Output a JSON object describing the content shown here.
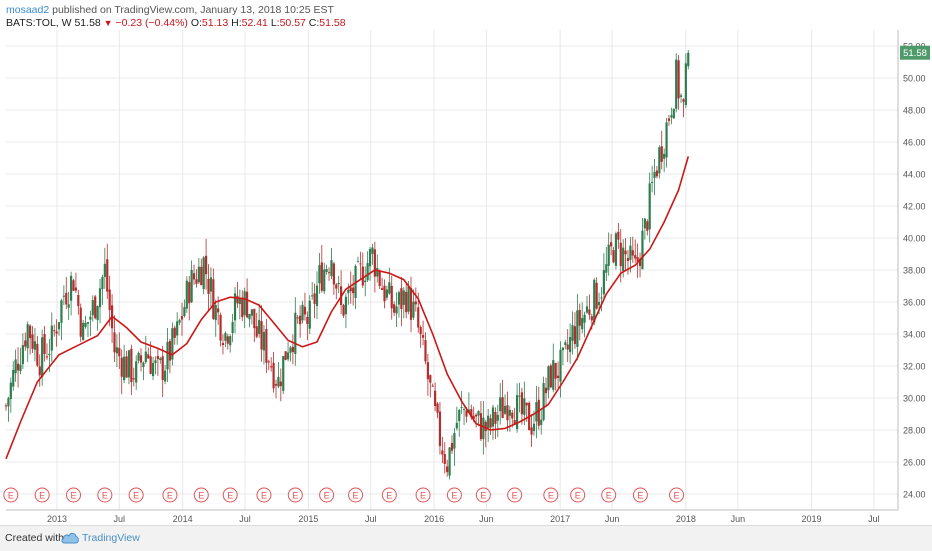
{
  "header": {
    "author": "mosaad2",
    "published_text": "published on TradingView.com, January 13, 2018 10:25 EST"
  },
  "legend": {
    "symbol": "BATS:TOL, W",
    "last": "51.58",
    "change": "−0.23 (−0.44%)",
    "o_label": "O:",
    "o_value": "51.13",
    "h_label": "H:",
    "h_value": "52.41",
    "l_label": "L:",
    "l_value": "50.57",
    "c_label": "C:",
    "c_value": "51.58"
  },
  "colors": {
    "up_candle": "#2e7d4f",
    "down_candle": "#b42d2d",
    "moving_average": "#cc1717",
    "price_tag_bg": "#4f9a6a",
    "earnings_marker": "#e25555",
    "grid": "#e8e8e8"
  },
  "price_tag": "51.58",
  "earnings_marker_label": "E",
  "footer": {
    "created_with": "Created with",
    "brand": "TradingView",
    "brand_icon": "tradingview-cloud-icon"
  },
  "chart_data": {
    "type": "candlestick",
    "interval": "weekly",
    "y_axis_side": "right",
    "ylim": [
      23.0,
      53.0
    ],
    "y_ticks": [
      "24.00",
      "26.00",
      "28.00",
      "30.00",
      "32.00",
      "34.00",
      "36.00",
      "38.00",
      "40.00",
      "42.00",
      "44.00",
      "46.00",
      "48.00",
      "50.00",
      "52.00"
    ],
    "x_range": [
      "2012-08-06",
      "2019-09-09"
    ],
    "x_ticks": [
      {
        "date": "2013-01-01",
        "label": "2013"
      },
      {
        "date": "2013-07-01",
        "label": "Jul"
      },
      {
        "date": "2014-01-01",
        "label": "2014"
      },
      {
        "date": "2014-07-01",
        "label": "Jul"
      },
      {
        "date": "2015-01-01",
        "label": "2015"
      },
      {
        "date": "2015-07-01",
        "label": "Jul"
      },
      {
        "date": "2016-01-01",
        "label": "2016"
      },
      {
        "date": "2016-06-01",
        "label": "Jun"
      },
      {
        "date": "2017-01-01",
        "label": "2017"
      },
      {
        "date": "2017-06-01",
        "label": "Jun"
      },
      {
        "date": "2018-01-01",
        "label": "2018"
      },
      {
        "date": "2018-06-01",
        "label": "Jun"
      },
      {
        "date": "2019-01-01",
        "label": "2019"
      },
      {
        "date": "2019-07-01",
        "label": "Jul"
      }
    ],
    "close_path": [
      [
        "2012-08-06",
        29.5
      ],
      [
        "2012-09-03",
        32.0
      ],
      [
        "2012-10-08",
        34.5
      ],
      [
        "2012-11-12",
        32.5
      ],
      [
        "2012-12-17",
        33.5
      ],
      [
        "2013-01-21",
        36.5
      ],
      [
        "2013-02-18",
        37.5
      ],
      [
        "2013-03-18",
        34.0
      ],
      [
        "2013-04-22",
        36.0
      ],
      [
        "2013-05-20",
        38.0
      ],
      [
        "2013-06-17",
        33.0
      ],
      [
        "2013-07-22",
        32.0
      ],
      [
        "2013-08-19",
        31.5
      ],
      [
        "2013-09-16",
        33.0
      ],
      [
        "2013-10-21",
        31.5
      ],
      [
        "2013-11-18",
        32.5
      ],
      [
        "2013-12-16",
        34.0
      ],
      [
        "2014-01-20",
        37.0
      ],
      [
        "2014-03-03",
        38.5
      ],
      [
        "2014-04-07",
        35.5
      ],
      [
        "2014-05-05",
        34.0
      ],
      [
        "2014-06-09",
        36.0
      ],
      [
        "2014-07-07",
        36.0
      ],
      [
        "2014-08-04",
        34.0
      ],
      [
        "2014-09-01",
        33.0
      ],
      [
        "2014-10-06",
        31.0
      ],
      [
        "2014-11-03",
        33.5
      ],
      [
        "2014-12-01",
        34.5
      ],
      [
        "2015-01-05",
        35.0
      ],
      [
        "2015-02-02",
        37.5
      ],
      [
        "2015-03-09",
        39.0
      ],
      [
        "2015-04-06",
        35.5
      ],
      [
        "2015-05-04",
        36.5
      ],
      [
        "2015-06-08",
        38.0
      ],
      [
        "2015-07-06",
        39.0
      ],
      [
        "2015-08-03",
        37.0
      ],
      [
        "2015-09-07",
        35.5
      ],
      [
        "2015-10-12",
        36.5
      ],
      [
        "2015-11-09",
        35.0
      ],
      [
        "2015-12-07",
        32.0
      ],
      [
        "2016-01-11",
        28.0
      ],
      [
        "2016-02-08",
        26.0
      ],
      [
        "2016-03-07",
        28.5
      ],
      [
        "2016-04-04",
        29.5
      ],
      [
        "2016-05-02",
        28.5
      ],
      [
        "2016-06-06",
        28.0
      ],
      [
        "2016-07-04",
        29.0
      ],
      [
        "2016-08-08",
        30.0
      ],
      [
        "2016-09-05",
        29.0
      ],
      [
        "2016-10-10",
        28.5
      ],
      [
        "2016-11-07",
        29.5
      ],
      [
        "2016-12-05",
        31.5
      ],
      [
        "2017-01-09",
        32.0
      ],
      [
        "2017-02-06",
        34.0
      ],
      [
        "2017-03-06",
        35.0
      ],
      [
        "2017-04-03",
        36.0
      ],
      [
        "2017-05-01",
        37.0
      ],
      [
        "2017-06-05",
        39.5
      ],
      [
        "2017-07-03",
        39.0
      ],
      [
        "2017-08-07",
        38.0
      ],
      [
        "2017-09-04",
        40.5
      ],
      [
        "2017-10-02",
        44.0
      ],
      [
        "2017-11-06",
        47.0
      ],
      [
        "2017-12-04",
        50.0
      ],
      [
        "2017-12-25",
        48.0
      ],
      [
        "2018-01-08",
        51.58
      ]
    ],
    "moving_average": [
      [
        "2012-08-06",
        26.2
      ],
      [
        "2012-09-17",
        28.5
      ],
      [
        "2012-11-05",
        31.0
      ],
      [
        "2013-01-07",
        32.7
      ],
      [
        "2013-03-04",
        33.3
      ],
      [
        "2013-04-29",
        33.9
      ],
      [
        "2013-06-10",
        35.1
      ],
      [
        "2013-07-22",
        34.4
      ],
      [
        "2013-09-02",
        33.5
      ],
      [
        "2013-10-21",
        33.1
      ],
      [
        "2013-12-02",
        32.7
      ],
      [
        "2014-01-13",
        33.4
      ],
      [
        "2014-02-24",
        34.9
      ],
      [
        "2014-04-07",
        36.0
      ],
      [
        "2014-05-19",
        36.3
      ],
      [
        "2014-06-30",
        36.2
      ],
      [
        "2014-08-11",
        35.8
      ],
      [
        "2014-09-22",
        34.7
      ],
      [
        "2014-11-03",
        33.6
      ],
      [
        "2014-12-15",
        33.2
      ],
      [
        "2015-01-26",
        33.5
      ],
      [
        "2015-03-09",
        35.4
      ],
      [
        "2015-04-20",
        36.8
      ],
      [
        "2015-06-01",
        37.4
      ],
      [
        "2015-07-13",
        38.0
      ],
      [
        "2015-08-24",
        37.8
      ],
      [
        "2015-10-05",
        37.4
      ],
      [
        "2015-11-16",
        36.2
      ],
      [
        "2015-12-28",
        34.0
      ],
      [
        "2016-02-08",
        31.5
      ],
      [
        "2016-03-21",
        29.8
      ],
      [
        "2016-05-02",
        28.4
      ],
      [
        "2016-06-13",
        28.0
      ],
      [
        "2016-07-25",
        28.1
      ],
      [
        "2016-09-05",
        28.5
      ],
      [
        "2016-10-17",
        29.0
      ],
      [
        "2016-11-28",
        29.6
      ],
      [
        "2017-01-09",
        31.0
      ],
      [
        "2017-02-20",
        32.5
      ],
      [
        "2017-04-03",
        34.5
      ],
      [
        "2017-05-15",
        36.5
      ],
      [
        "2017-06-26",
        37.8
      ],
      [
        "2017-08-07",
        38.3
      ],
      [
        "2017-09-18",
        39.3
      ],
      [
        "2017-10-30",
        41.0
      ],
      [
        "2017-12-11",
        43.0
      ],
      [
        "2018-01-08",
        45.1
      ]
    ],
    "earnings_dates": [
      "2012-08-20",
      "2012-11-19",
      "2013-02-18",
      "2013-05-20",
      "2013-08-19",
      "2013-11-25",
      "2014-02-24",
      "2014-05-19",
      "2014-08-25",
      "2014-11-24",
      "2015-02-23",
      "2015-05-18",
      "2015-08-24",
      "2015-11-30",
      "2016-02-29",
      "2016-05-23",
      "2016-08-22",
      "2016-12-05",
      "2017-02-21",
      "2017-05-22",
      "2017-08-22",
      "2017-12-05"
    ]
  }
}
